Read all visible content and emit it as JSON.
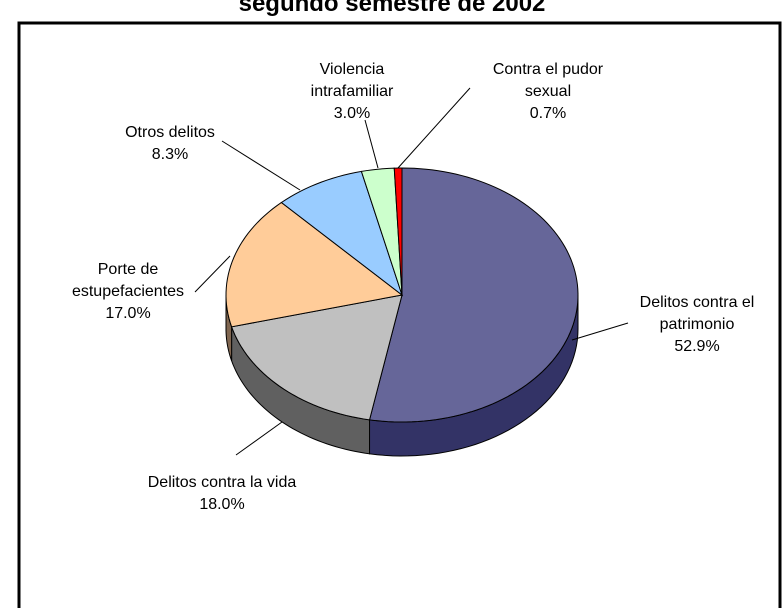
{
  "chart_data": {
    "type": "pie",
    "title": "segundo semestre de 2002",
    "categories": [
      "Delitos contra el patrimonio",
      "Delitos contra la vida",
      "Porte de estupefacientes",
      "Otros delitos",
      "Violencia intrafamiliar",
      "Contra el pudor sexual"
    ],
    "values": [
      52.9,
      18.0,
      17.0,
      8.3,
      3.0,
      0.7
    ],
    "value_labels": [
      "52.9%",
      "18.0%",
      "17.0%",
      "8.3%",
      "3.0%",
      "0.7%"
    ],
    "colors": [
      "#666699",
      "#C0C0C0",
      "#FFCC99",
      "#99CCFF",
      "#CCFFCC",
      "#FF0000"
    ],
    "side_colors": [
      "#333366",
      "#606060",
      "#806650",
      "#4c6680",
      "#668066",
      "#800000"
    ]
  }
}
